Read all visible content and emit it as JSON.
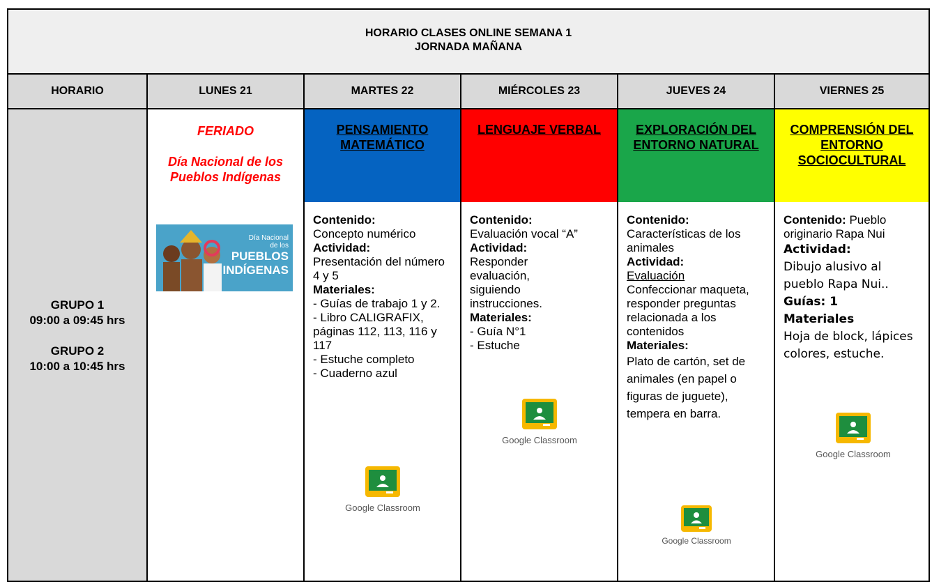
{
  "header": {
    "title": "HORARIO CLASES ONLINE SEMANA 1",
    "subtitle": "JORNADA MAÑANA"
  },
  "columns": [
    "HORARIO",
    "LUNES 21",
    "MARTES 22",
    "MIÉRCOLES 23",
    "JUEVES 24",
    "VIERNES 25"
  ],
  "groups": [
    {
      "name": "GRUPO 1",
      "time": "09:00 a 09:45 hrs"
    },
    {
      "name": "GRUPO 2",
      "time": "10:00 a 10:45 hrs"
    }
  ],
  "holiday": {
    "label": "FERIADO",
    "name": "Día Nacional de los Pueblos Indígenas",
    "image_text": [
      "Día Nacional",
      "de los",
      "PUEBLOS",
      "INDÍGENAS"
    ]
  },
  "platform": "Google Classroom",
  "subjects": [
    {
      "title": "PENSAMIENTO MATEMÁTICO",
      "content_label": "Contenido:",
      "content": "Concepto numérico",
      "activity_label": "Actividad:",
      "activity": [
        "Presentación del número 4 y 5"
      ],
      "materials_label": "Materiales:",
      "materials": [
        "- Guías de trabajo 1 y 2.",
        "- Libro CALIGRAFIX, páginas 112, 113, 116 y 117",
        "- Estuche completo",
        "- Cuaderno azul"
      ]
    },
    {
      "title": "LENGUAJE VERBAL",
      "content_label": "Contenido:",
      "content": "Evaluación vocal “A”",
      "activity_label": "Actividad:",
      "activity": [
        "Responder evaluación, siguiendo instrucciones."
      ],
      "materials_label": "Materiales:",
      "materials": [
        "- Guía N°1",
        "- Estuche"
      ]
    },
    {
      "title": "EXPLORACIÓN DEL ENTORNO NATURAL",
      "content_label": "Contenido:",
      "content": "Características de los animales",
      "activity_label": "Actividad:",
      "activity": [
        "Evaluación",
        "Confeccionar maqueta, responder preguntas relacionada a los contenidos"
      ],
      "materials_label": "Materiales:",
      "materials": [
        "Plato de cartón, set de animales (en papel o figuras de juguete), tempera en barra."
      ]
    },
    {
      "title": "COMPRENSIÓN DEL ENTORNO SOCIOCULTURAL",
      "content_label": "Contenido:",
      "content": "Pueblo originario Rapa Nui",
      "activity_label": "Actividad:",
      "activity": [
        "Dibujo alusivo al pueblo Rapa Nui.."
      ],
      "guides": "Guías: 1",
      "materials_label": "Materiales",
      "materials": [
        "Hoja de block, lápices colores, estuche."
      ]
    }
  ]
}
